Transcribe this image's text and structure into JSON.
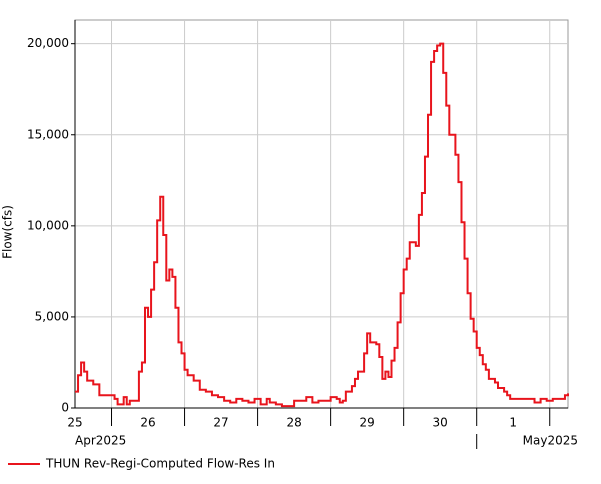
{
  "chart_data": {
    "type": "step-line",
    "y_label": "Flow(cfs)",
    "series": [
      {
        "name": "THUN Rev-Regi-Computed Flow-Res In",
        "color": "#e8141c",
        "x": [
          12,
          13,
          14,
          15,
          16,
          18,
          20,
          24,
          25,
          26,
          28,
          29,
          30,
          32,
          33,
          34,
          35,
          36,
          37,
          38,
          39,
          40,
          41,
          42,
          43,
          44,
          45,
          46,
          47,
          48,
          49,
          51,
          53,
          55,
          57,
          59,
          61,
          63,
          65,
          67,
          69,
          71,
          73,
          75,
          76,
          78,
          80,
          82,
          84,
          86,
          88,
          90,
          92,
          94,
          96,
          98,
          99,
          100,
          101,
          103,
          104,
          105,
          106,
          107,
          108,
          109,
          111,
          112,
          113,
          114,
          115,
          116,
          117,
          118,
          119,
          120,
          121,
          122,
          124,
          125,
          126,
          127,
          128,
          129,
          130,
          131,
          132,
          133,
          134,
          135,
          137,
          138,
          139,
          140,
          141,
          142,
          143,
          144,
          145,
          146,
          147,
          148,
          150,
          151,
          153,
          154,
          155,
          159,
          163,
          165,
          167,
          169,
          173,
          174
        ],
        "values": [
          900,
          1800,
          2500,
          2000,
          1500,
          1300,
          700,
          700,
          500,
          200,
          600,
          200,
          400,
          400,
          2000,
          2500,
          5500,
          5000,
          6500,
          8000,
          10300,
          11600,
          9500,
          7000,
          7600,
          7200,
          5500,
          3600,
          3000,
          2100,
          1800,
          1500,
          1000,
          900,
          700,
          600,
          400,
          300,
          500,
          400,
          300,
          500,
          200,
          500,
          300,
          200,
          100,
          100,
          400,
          400,
          600,
          300,
          400,
          400,
          600,
          500,
          300,
          400,
          900,
          1200,
          1600,
          2000,
          2000,
          3000,
          4100,
          3600,
          3500,
          2800,
          1600,
          2000,
          1700,
          2600,
          3300,
          4700,
          6300,
          7600,
          8200,
          9100,
          8900,
          10600,
          11800,
          13800,
          16100,
          19000,
          19600,
          19900,
          20000,
          18400,
          16600,
          15000,
          13900,
          12400,
          10200,
          8200,
          6300,
          4900,
          4200,
          3300,
          2900,
          2400,
          2100,
          1600,
          1400,
          1100,
          900,
          700,
          500,
          500,
          300,
          500,
          400,
          500,
          700,
          800
        ]
      }
    ],
    "xlim": [
      12,
      174
    ],
    "xticks": [
      {
        "value": 12,
        "label": "25"
      },
      {
        "value": 36,
        "label": "26"
      },
      {
        "value": 60,
        "label": "27"
      },
      {
        "value": 84,
        "label": "28"
      },
      {
        "value": 108,
        "label": "29"
      },
      {
        "value": 132,
        "label": "30"
      },
      {
        "value": 156,
        "label": "1"
      }
    ],
    "xgrid": [
      24,
      48,
      72,
      96,
      120,
      144,
      168
    ],
    "x_periods": [
      {
        "label": "Apr2025",
        "start": 12
      },
      {
        "label": "May2025",
        "start": 144
      }
    ],
    "ylim": [
      0,
      21300
    ],
    "yticks": [
      0,
      {
        "value": 5000,
        "label": "5,000"
      },
      {
        "value": 10000,
        "label": "10,000"
      },
      {
        "value": 15000,
        "label": "15,000"
      },
      {
        "value": 20000,
        "label": "20,000"
      }
    ],
    "grid": true
  }
}
